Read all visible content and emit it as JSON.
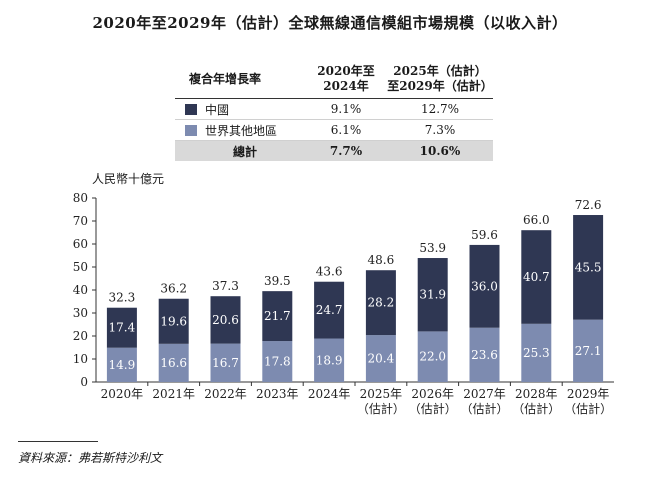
{
  "title": "2020年至2029年（估計）全球無線通信模組市場規模（以收入計）",
  "cagr_table": {
    "header_label": "複合年增長率",
    "col1_line1": "2020年至",
    "col1_line2": "2024年",
    "col2_line1": "2025年（估計）",
    "col2_line2": "至2029年（估計）",
    "rows": [
      {
        "name": "中國",
        "c1": "9.1%",
        "c2": "12.7%"
      },
      {
        "name": "世界其他地區",
        "c1": "6.1%",
        "c2": "7.3%"
      }
    ],
    "total": {
      "name": "總計",
      "c1": "7.7%",
      "c2": "10.6%"
    }
  },
  "colors": {
    "china": "#2f3753",
    "rest": "#7d8bb0",
    "total_row": "#d9d9d9"
  },
  "source": "資料來源：弗若斯特沙利文",
  "chart_data": {
    "type": "bar",
    "stacked": true,
    "ylabel": "人民幣十億元",
    "ylim": [
      0,
      80
    ],
    "yticks": [
      0,
      10,
      20,
      30,
      40,
      50,
      60,
      70,
      80
    ],
    "grid": false,
    "categories": [
      [
        "2020年"
      ],
      [
        "2021年"
      ],
      [
        "2022年"
      ],
      [
        "2023年"
      ],
      [
        "2024年"
      ],
      [
        "2025年",
        "（估計）"
      ],
      [
        "2026年",
        "（估計）"
      ],
      [
        "2027年",
        "（估計）"
      ],
      [
        "2028年",
        "（估計）"
      ],
      [
        "2029年",
        "（估計）"
      ]
    ],
    "series": [
      {
        "name": "世界其他地區",
        "values": [
          14.9,
          16.6,
          16.7,
          17.8,
          18.9,
          20.4,
          22.0,
          23.6,
          25.3,
          27.1
        ]
      },
      {
        "name": "中國",
        "values": [
          17.4,
          19.6,
          20.6,
          21.7,
          24.7,
          28.2,
          31.9,
          36.0,
          40.7,
          45.5
        ]
      }
    ],
    "totals": [
      32.3,
      36.2,
      37.3,
      39.5,
      43.6,
      48.6,
      53.9,
      59.6,
      66.0,
      72.6
    ]
  }
}
